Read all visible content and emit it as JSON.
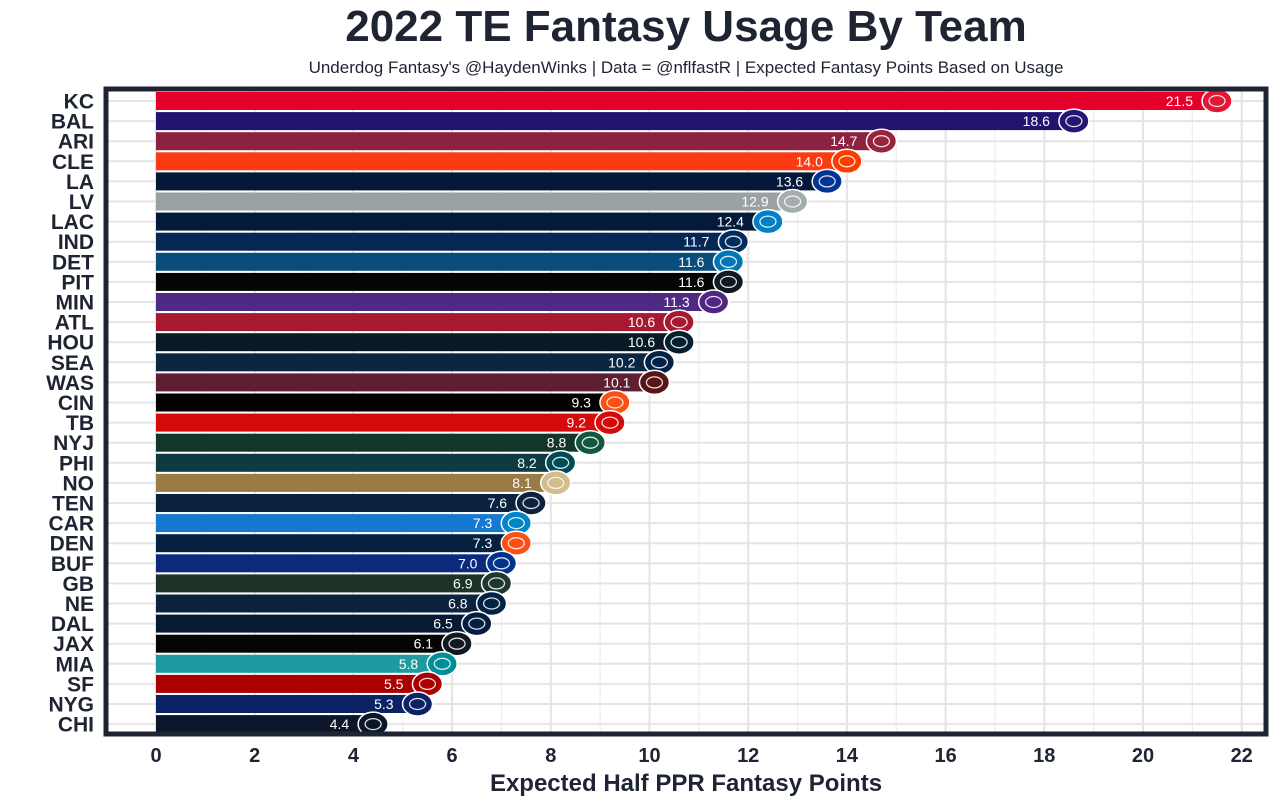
{
  "chart_data": {
    "type": "bar",
    "orientation": "horizontal",
    "title": "2022 TE Fantasy Usage By Team",
    "subtitle": "Underdog Fantasy's @HaydenWinks | Data = @nflfastR | Expected Fantasy Points Based on Usage",
    "xlabel": "Expected Half PPR Fantasy Points",
    "ylabel": "",
    "xlim": [
      0,
      22.5
    ],
    "xticks": [
      0,
      2,
      4,
      6,
      8,
      10,
      12,
      14,
      16,
      18,
      20,
      22
    ],
    "grid": true,
    "categories": [
      "KC",
      "BAL",
      "ARI",
      "CLE",
      "LA",
      "LV",
      "LAC",
      "IND",
      "DET",
      "PIT",
      "MIN",
      "ATL",
      "HOU",
      "SEA",
      "WAS",
      "CIN",
      "TB",
      "NYJ",
      "PHI",
      "NO",
      "TEN",
      "CAR",
      "DEN",
      "BUF",
      "GB",
      "NE",
      "DAL",
      "JAX",
      "MIA",
      "SF",
      "NYG",
      "CHI"
    ],
    "values": [
      21.5,
      18.6,
      14.7,
      14.0,
      13.6,
      12.9,
      12.4,
      11.7,
      11.6,
      11.6,
      11.3,
      10.6,
      10.6,
      10.2,
      10.1,
      9.3,
      9.2,
      8.8,
      8.2,
      8.1,
      7.6,
      7.3,
      7.3,
      7.0,
      6.9,
      6.8,
      6.5,
      6.1,
      5.8,
      5.5,
      5.3,
      4.4
    ],
    "value_labels": [
      "21.5",
      "18.6",
      "14.7",
      "14.0",
      "13.6",
      "12.9",
      "12.4",
      "11.7",
      "11.6",
      "11.6",
      "11.3",
      "10.6",
      "10.6",
      "10.2",
      "10.1",
      "9.3",
      "9.2",
      "8.8",
      "8.2",
      "8.1",
      "7.6",
      "7.3",
      "7.3",
      "7.0",
      "6.9",
      "6.8",
      "6.5",
      "6.1",
      "5.8",
      "5.5",
      "5.3",
      "4.4"
    ],
    "colors": [
      "#e31837",
      "#241773",
      "#97233f",
      "#ff3c00",
      "#003594",
      "#a5acaf",
      "#0080c6",
      "#002c5f",
      "#0076b6",
      "#101820",
      "#4f2683",
      "#a71930",
      "#03202f",
      "#002244",
      "#5a1414",
      "#fb4f14",
      "#d50a0a",
      "#125740",
      "#004c54",
      "#d3bc8d",
      "#0c2340",
      "#0085ca",
      "#fb4f14",
      "#00338d",
      "#203731",
      "#002244",
      "#041e42",
      "#101820",
      "#008e97",
      "#aa0000",
      "#0b2265",
      "#0b162a"
    ],
    "bar_colors": [
      "#e4002b",
      "#231370",
      "#8c2142",
      "#fb3b14",
      "#04193a",
      "#9aa1a4",
      "#031a3a",
      "#062756",
      "#0b4d7a",
      "#050505",
      "#4e2a84",
      "#a71930",
      "#071a25",
      "#0a2642",
      "#5d1f31",
      "#000000",
      "#d50a0a",
      "#12372a",
      "#0d3b3f",
      "#9a7b45",
      "#0c2340",
      "#1579d1",
      "#062141",
      "#0b2a7c",
      "#1e3227",
      "#0c2340",
      "#071a34",
      "#050505",
      "#1f9aa0",
      "#aa0000",
      "#0b2265",
      "#0b162a"
    ]
  }
}
